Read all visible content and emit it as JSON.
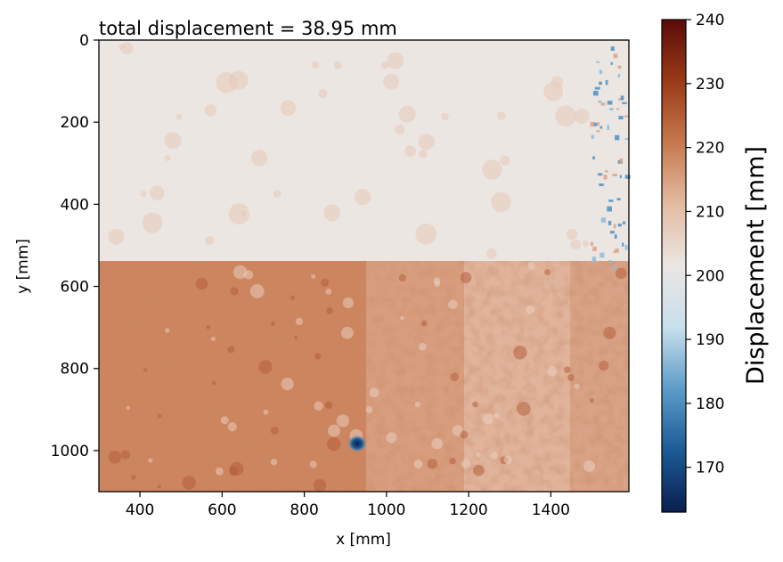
{
  "chart_data": {
    "type": "heatmap",
    "title": "total displacement = 38.95 mm",
    "xlabel": "x [mm]",
    "ylabel": "y [mm]",
    "xlim": [
      300,
      1590
    ],
    "ylim": [
      0,
      1100
    ],
    "y_inverted": true,
    "x_ticks": [
      "400",
      "600",
      "800",
      "1000",
      "1200",
      "1400"
    ],
    "x_tick_values": [
      400,
      600,
      800,
      1000,
      1200,
      1400
    ],
    "y_ticks": [
      "0",
      "200",
      "400",
      "600",
      "800",
      "1000"
    ],
    "y_tick_values": [
      0,
      200,
      400,
      600,
      800,
      1000
    ],
    "colorbar": {
      "label": "Displacement  [mm]",
      "range": [
        163,
        240
      ],
      "ticks": [
        "240",
        "230",
        "220",
        "210",
        "200",
        "190",
        "180",
        "170"
      ],
      "tick_values": [
        240,
        230,
        220,
        210,
        200,
        190,
        180,
        170
      ],
      "colormap_stops": [
        "#0b1e4e",
        "#1b5a96",
        "#5d9cc8",
        "#c8dfec",
        "#ebe6e3",
        "#e3bba2",
        "#c6784e",
        "#9a3a18",
        "#5a0c0a"
      ]
    },
    "field_regions": [
      {
        "region": "upper zone",
        "y_range": [
          0,
          560
        ],
        "approx_value": 202
      },
      {
        "region": "lower-left zone",
        "y_range": [
          560,
          1100
        ],
        "x_range": [
          300,
          900
        ],
        "approx_value": 222
      },
      {
        "region": "lower-right zone",
        "y_range": [
          560,
          1100
        ],
        "x_range": [
          900,
          1590
        ],
        "approx_value": 212
      },
      {
        "region": "low-displacement spot",
        "x": 930,
        "y": 980,
        "approx_value": 170
      },
      {
        "region": "right edge noise",
        "x": 1560,
        "y_range": [
          0,
          560
        ],
        "approx_value": 192
      }
    ]
  }
}
